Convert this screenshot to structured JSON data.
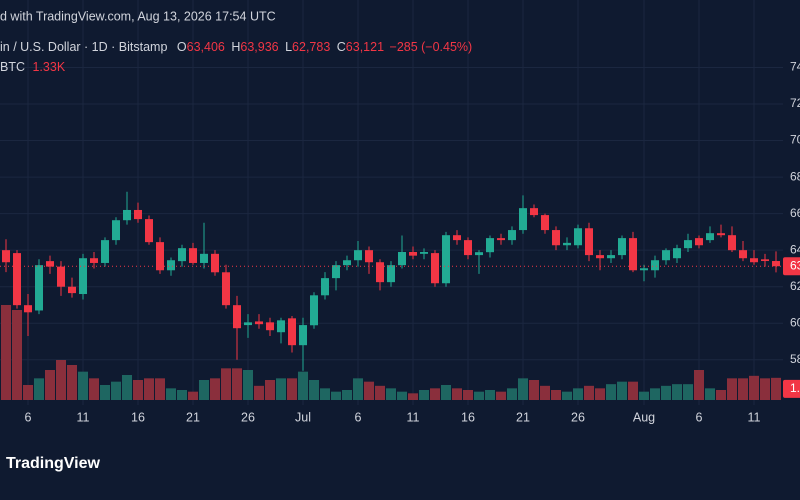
{
  "chart_data": {
    "type": "candlestick",
    "header": "d with TradingView.com, Aug 13, 2026 17:54 UTC",
    "symbol": "in / U.S. Dollar · 1D · Bitstamp",
    "ohlc_legend": [
      {
        "key": "O",
        "label": "63,406"
      },
      {
        "key": "H",
        "label": "63,936"
      },
      {
        "key": "L",
        "label": "62,783"
      },
      {
        "key": "C",
        "label": "63,121"
      }
    ],
    "change": "−285 (−0.45%)",
    "volume_legend": {
      "key": "BTC",
      "label": "1.33K"
    },
    "brand": "TradingView",
    "categories": [
      null,
      null,
      "6",
      null,
      null,
      null,
      null,
      "11",
      null,
      null,
      null,
      null,
      "16",
      null,
      null,
      null,
      null,
      "21",
      null,
      null,
      null,
      null,
      "26",
      null,
      null,
      null,
      null,
      "Jul",
      null,
      null,
      null,
      null,
      "6",
      null,
      null,
      null,
      null,
      "11",
      null,
      null,
      null,
      null,
      "16",
      null,
      null,
      null,
      null,
      "21",
      null,
      null,
      null,
      null,
      "26",
      null,
      null,
      null,
      null,
      null,
      "Aug",
      null,
      null,
      null,
      null,
      "6",
      null,
      null,
      null,
      null,
      "11",
      null,
      null
    ],
    "open": [
      64000,
      63840,
      60990,
      60700,
      63400,
      63100,
      62000,
      61600,
      63560,
      63300,
      64550,
      65640,
      66200,
      65700,
      64440,
      62900,
      63400,
      64110,
      63300,
      63800,
      62790,
      60990,
      59900,
      60100,
      60050,
      59510,
      60270,
      58800,
      59890,
      61530,
      62470,
      63180,
      63450,
      64000,
      63340,
      62250,
      63180,
      63900,
      63800,
      63840,
      62190,
      64820,
      64550,
      63730,
      63890,
      64660,
      64550,
      65100,
      66300,
      65920,
      65100,
      64270,
      64270,
      65200,
      63730,
      63560,
      63730,
      64660,
      62900,
      62900,
      63450,
      63560,
      64110,
      64660,
      64550,
      64930,
      64820,
      64000,
      63560,
      63500,
      63406
    ],
    "high": [
      64600,
      64000,
      61600,
      63500,
      63700,
      63400,
      62500,
      63800,
      63900,
      64700,
      65800,
      67200,
      66600,
      65900,
      64700,
      63600,
      64300,
      64400,
      65500,
      64000,
      63200,
      61500,
      60500,
      60500,
      60300,
      60300,
      60400,
      60300,
      61700,
      62800,
      63400,
      63700,
      64500,
      64200,
      63500,
      63400,
      64800,
      64200,
      64100,
      64000,
      65000,
      65100,
      64700,
      64000,
      64800,
      64900,
      65300,
      67000,
      66500,
      66000,
      65300,
      64700,
      65400,
      65500,
      64000,
      64000,
      64800,
      65000,
      63200,
      63700,
      64100,
      64300,
      64900,
      64800,
      65300,
      65400,
      65300,
      64500,
      64000,
      63800,
      63936
    ],
    "low": [
      62800,
      60800,
      59300,
      60500,
      62700,
      61500,
      61400,
      61300,
      63000,
      63100,
      64300,
      65400,
      65500,
      64300,
      62700,
      62600,
      63100,
      63200,
      63000,
      62600,
      60800,
      58000,
      59200,
      59700,
      59300,
      58900,
      58400,
      57400,
      59700,
      61300,
      61800,
      62900,
      63100,
      62700,
      61800,
      62000,
      63000,
      63500,
      63500,
      62000,
      62000,
      64300,
      63500,
      62700,
      63600,
      64300,
      64300,
      64900,
      65800,
      64900,
      64000,
      64000,
      64100,
      63400,
      62900,
      63300,
      63500,
      62800,
      62300,
      62500,
      63200,
      63300,
      63900,
      64100,
      64400,
      64700,
      63900,
      63400,
      63200,
      63100,
      62783
    ],
    "close": [
      63340,
      60990,
      60600,
      63180,
      63100,
      62000,
      61650,
      63560,
      63300,
      64550,
      65640,
      66200,
      65700,
      64440,
      62900,
      63450,
      64110,
      63300,
      63800,
      62790,
      60990,
      59730,
      60050,
      59950,
      59620,
      60160,
      58800,
      59900,
      61530,
      62470,
      63180,
      63450,
      64000,
      63340,
      62250,
      63180,
      63900,
      63700,
      63900,
      62190,
      64820,
      64550,
      63730,
      63890,
      64660,
      64550,
      65100,
      66300,
      65920,
      65100,
      64270,
      64400,
      65200,
      63730,
      63560,
      63730,
      64660,
      62900,
      63010,
      63450,
      64000,
      64110,
      64550,
      64270,
      64930,
      64820,
      64000,
      63560,
      63340,
      63406,
      63121
    ],
    "volume": [
      5700,
      5400,
      900,
      1300,
      1800,
      2400,
      2100,
      1700,
      1300,
      900,
      1100,
      1500,
      1200,
      1300,
      1300,
      700,
      600,
      500,
      1200,
      1300,
      1900,
      1900,
      1800,
      850,
      1200,
      1300,
      1300,
      1700,
      1200,
      700,
      500,
      600,
      1300,
      1100,
      850,
      700,
      500,
      400,
      600,
      700,
      900,
      700,
      600,
      500,
      600,
      500,
      700,
      1300,
      1200,
      850,
      600,
      500,
      700,
      850,
      700,
      950,
      1100,
      1100,
      500,
      700,
      850,
      950,
      950,
      1800,
      700,
      600,
      1300,
      1300,
      1450,
      1300,
      1330
    ],
    "up_color": "#22ab94",
    "down_color": "#f23645",
    "volume_up_color": "#1e6661",
    "volume_down_color": "#8a2f3c",
    "ylim": [
      55800,
      76050
    ],
    "yticks": [
      {
        "value": 58000,
        "label": "58"
      },
      {
        "value": 60000,
        "label": "60"
      },
      {
        "value": 62000,
        "label": "62"
      },
      {
        "value": 64000,
        "label": "64"
      },
      {
        "value": 66000,
        "label": "66"
      },
      {
        "value": 68000,
        "label": "68"
      },
      {
        "value": 70000,
        "label": "70"
      },
      {
        "value": 72000,
        "label": "72"
      },
      {
        "value": 74000,
        "label": "74"
      }
    ],
    "last_price": {
      "value": 63121,
      "label": "63"
    },
    "last_volume": {
      "value": 1330,
      "label": "1."
    },
    "grid": true
  }
}
